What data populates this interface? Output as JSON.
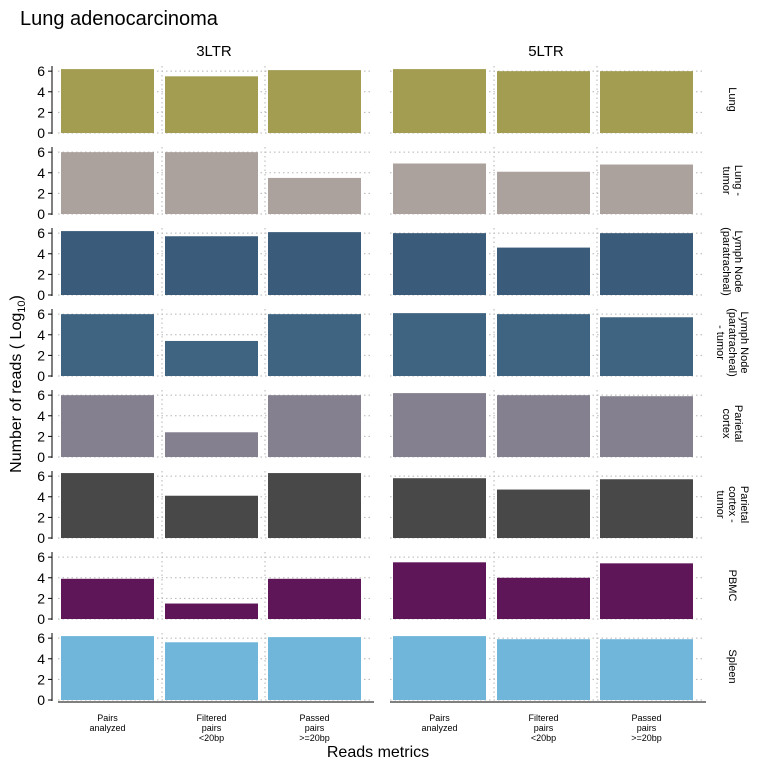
{
  "chart_data": {
    "type": "bar",
    "title": "Lung adenocarcinoma",
    "xlabel": "Reads metrics",
    "ylabel_main": "Number of reads ( Log",
    "ylabel_sub": "10",
    "ylabel_end": ")",
    "ylim": [
      0,
      6.5
    ],
    "yticks": [
      "0",
      "2",
      "4",
      "6"
    ],
    "grid": "dotted",
    "columns": [
      "3LTR",
      "5LTR"
    ],
    "categories": [
      [
        "Pairs",
        "analyzed"
      ],
      [
        "Filtered",
        "pairs",
        "<20bp"
      ],
      [
        "Passed",
        "pairs",
        ">=20bp"
      ]
    ],
    "rows": [
      {
        "label": [
          "Lung"
        ],
        "color": "#a39d51",
        "values": {
          "3LTR": [
            6.2,
            5.5,
            6.1
          ],
          "5LTR": [
            6.2,
            6.0,
            6.0
          ]
        }
      },
      {
        "label": [
          "Lung -",
          "tumor"
        ],
        "color": "#aca29d",
        "values": {
          "3LTR": [
            6.0,
            6.0,
            3.5
          ],
          "5LTR": [
            4.9,
            4.1,
            4.8
          ]
        }
      },
      {
        "label": [
          "Lymph Node",
          "(paratracheal)"
        ],
        "color": "#3b5b7a",
        "values": {
          "3LTR": [
            6.2,
            5.7,
            6.1
          ],
          "5LTR": [
            6.0,
            4.6,
            6.0
          ]
        }
      },
      {
        "label": [
          "Lymph Node",
          "(paratracheal)",
          "- tumor"
        ],
        "color": "#3f6482",
        "values": {
          "3LTR": [
            6.0,
            3.4,
            6.0
          ],
          "5LTR": [
            6.1,
            6.0,
            5.7
          ]
        }
      },
      {
        "label": [
          "Parietal",
          "cortex"
        ],
        "color": "#858090",
        "values": {
          "3LTR": [
            6.0,
            2.4,
            6.0
          ],
          "5LTR": [
            6.2,
            6.0,
            5.9
          ]
        }
      },
      {
        "label": [
          "Parietal",
          "cortex -",
          "tumor"
        ],
        "color": "#484848",
        "values": {
          "3LTR": [
            6.3,
            4.1,
            6.3
          ],
          "5LTR": [
            5.8,
            4.7,
            5.7
          ]
        }
      },
      {
        "label": [
          "PBMC"
        ],
        "color": "#5f1658",
        "values": {
          "3LTR": [
            3.9,
            1.5,
            3.9
          ],
          "5LTR": [
            5.5,
            4.0,
            5.4
          ]
        }
      },
      {
        "label": [
          "Spleen"
        ],
        "color": "#6fb6da",
        "values": {
          "3LTR": [
            6.2,
            5.6,
            6.1
          ],
          "5LTR": [
            6.2,
            5.9,
            5.9
          ]
        }
      }
    ]
  }
}
